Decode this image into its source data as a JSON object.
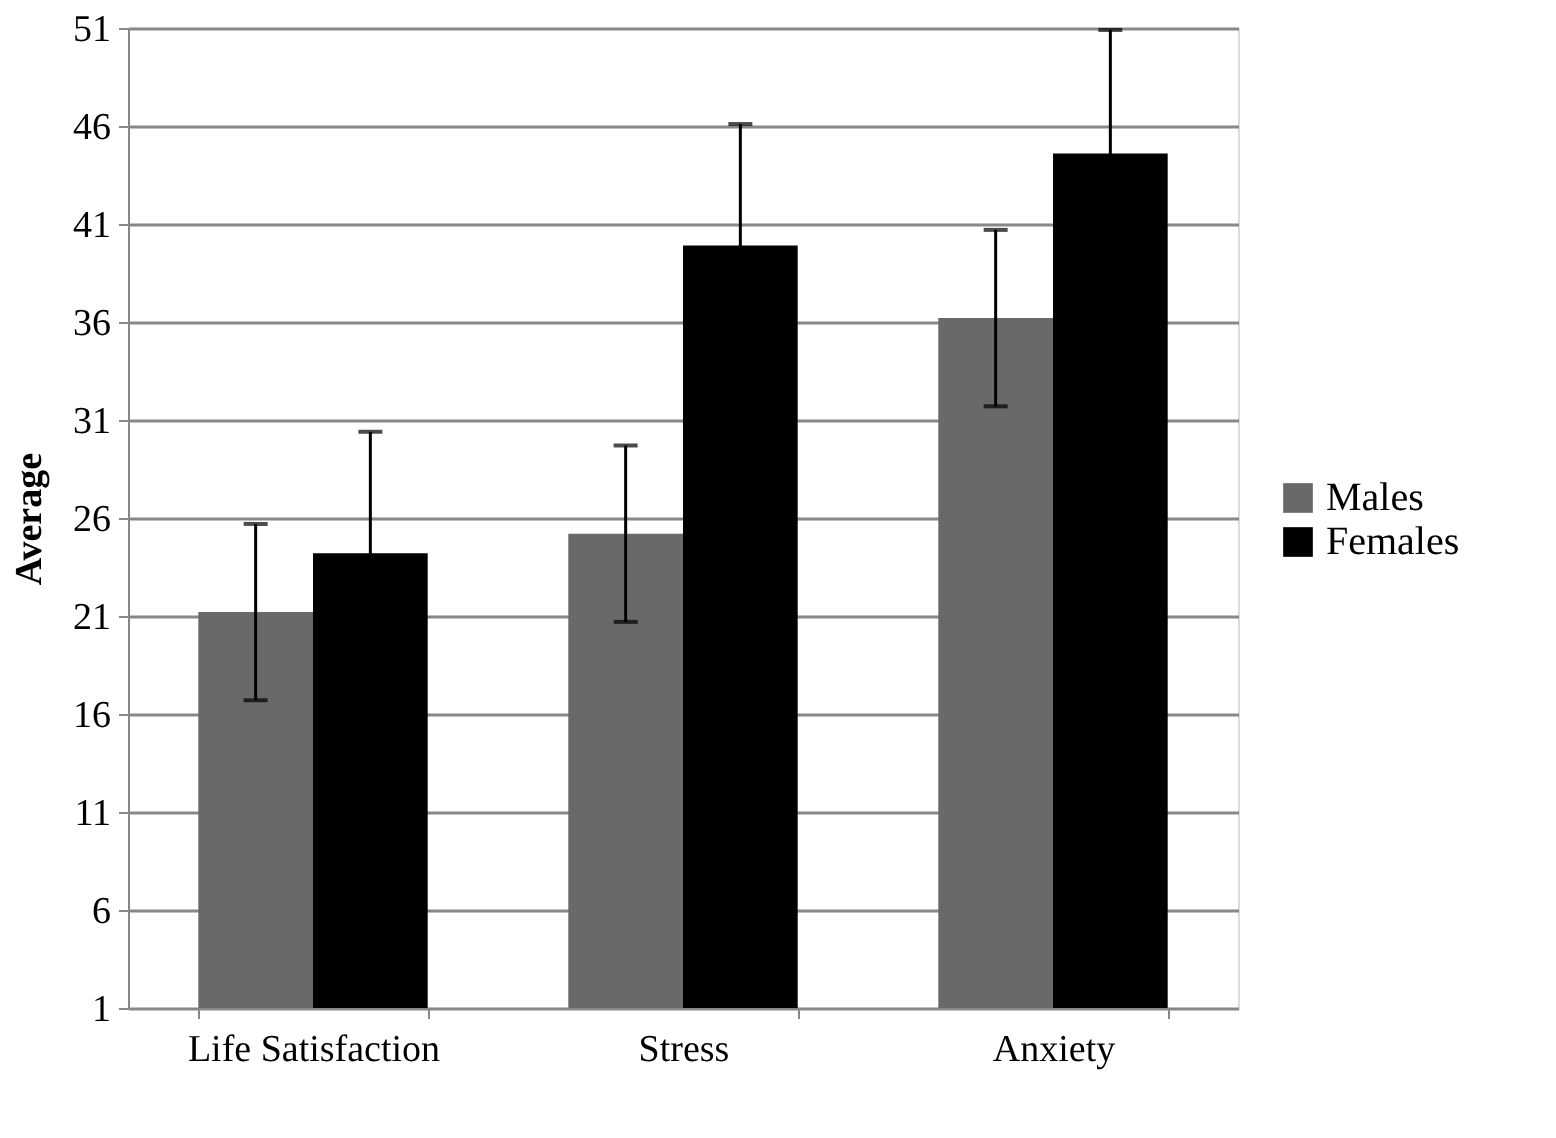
{
  "chart_data": {
    "type": "bar",
    "ylabel": "Average",
    "categories": [
      "Life Satisfaction",
      "Stress",
      "Anxiety"
    ],
    "series": [
      {
        "name": "Males",
        "color": "#696969",
        "values": [
          21.2,
          25.2,
          36.2
        ],
        "errors": [
          4.5,
          4.5,
          4.5
        ]
      },
      {
        "name": "Females",
        "color": "#000000",
        "values": [
          24.2,
          39.9,
          44.6
        ],
        "errors": [
          6.2,
          6.2,
          6.3
        ]
      }
    ],
    "ylim": [
      1,
      51
    ],
    "yticks": [
      1,
      6,
      11,
      16,
      21,
      26,
      31,
      36,
      41,
      46,
      51
    ],
    "grid": "y",
    "legend": "right"
  }
}
